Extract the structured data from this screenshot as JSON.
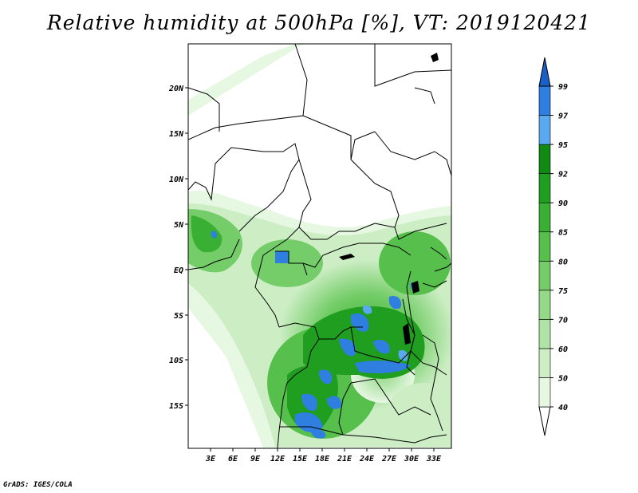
{
  "title": "Relative humidity at 500hPa [%], VT: 2019120421",
  "credit": "GrADS: IGES/COLA",
  "map": {
    "lat_labels": [
      "20N",
      "15N",
      "10N",
      "5N",
      "EQ",
      "5S",
      "10S",
      "15S"
    ],
    "lon_labels": [
      "3E",
      "6E",
      "9E",
      "12E",
      "15E",
      "18E",
      "21E",
      "24E",
      "27E",
      "30E",
      "33E"
    ]
  },
  "colorbar": {
    "labels": [
      "40",
      "50",
      "60",
      "70",
      "75",
      "80",
      "85",
      "90",
      "92",
      "95",
      "97",
      "99"
    ],
    "colors": [
      "#ffffff",
      "#e6f7e2",
      "#cdeec5",
      "#b0e4a6",
      "#93d987",
      "#75cd69",
      "#57c04d",
      "#39b033",
      "#1f9e20",
      "#118a13",
      "#5aa8f0",
      "#2f7fe0",
      "#1a5ec8"
    ]
  }
}
